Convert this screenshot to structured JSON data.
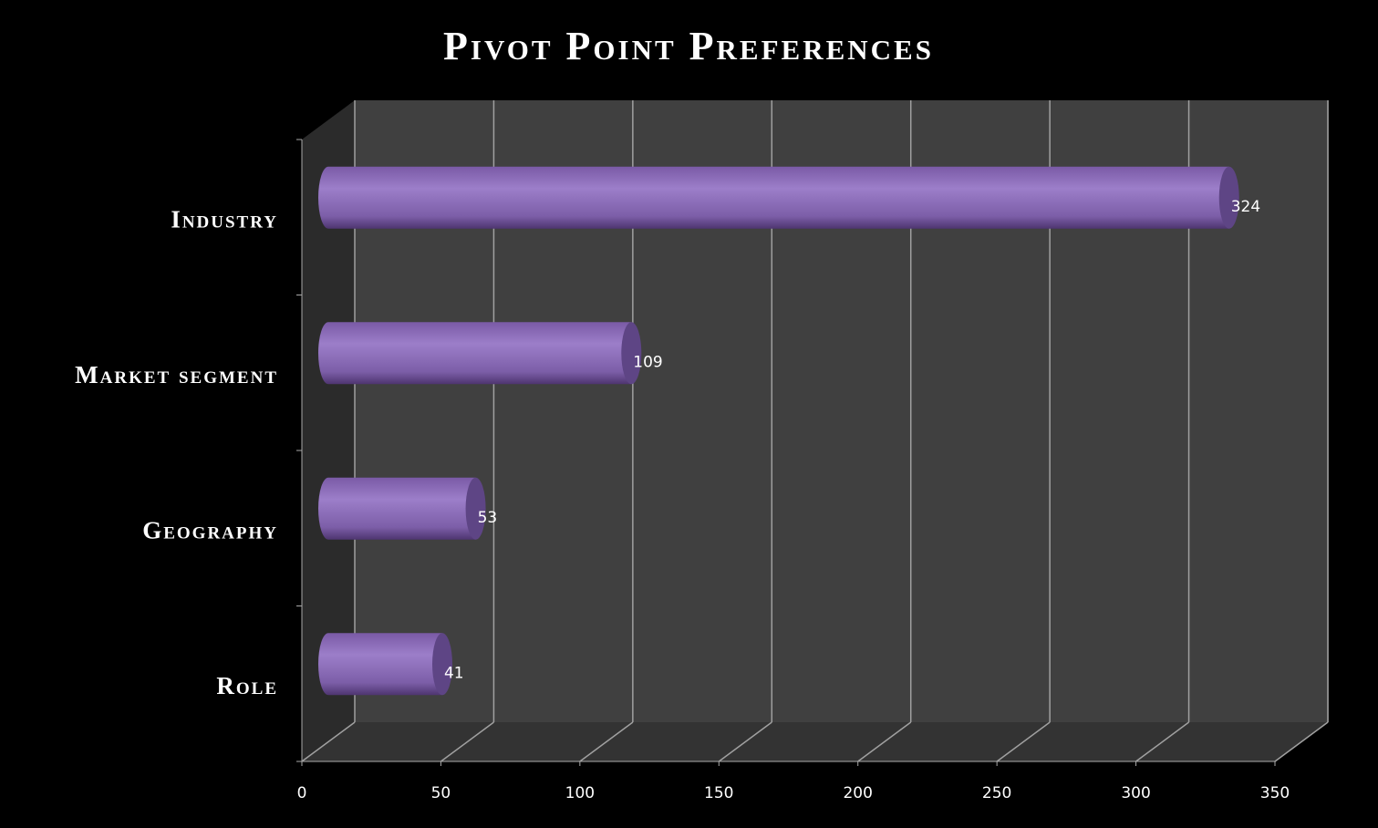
{
  "chart_data": {
    "type": "bar",
    "orientation": "horizontal",
    "title": "Pivot Point Preferences",
    "categories": [
      "Industry",
      "Market segment",
      "Geography",
      "Role"
    ],
    "values": [
      324,
      109,
      53,
      41
    ],
    "color": "#8e6fb8",
    "xlim": [
      0,
      350
    ],
    "xticks": [
      0,
      50,
      100,
      150,
      200,
      250,
      300,
      350
    ],
    "grid": true
  }
}
